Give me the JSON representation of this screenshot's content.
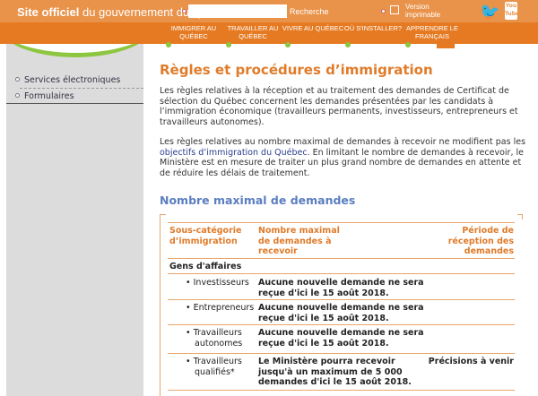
{
  "header": {
    "site_bold": "Site officiel",
    "site_rest": " du gouvernement du Québec",
    "search_placeholder": "",
    "search_label": "Recherche",
    "print_label": "Version imprimable",
    "youtube": "You Tube"
  },
  "nav": [
    "IMMIGRER AU QUÉBEC",
    "TRAVAILLER AU QUÉBEC",
    "VIVRE AU QUÉBEC",
    "OÙ S'INSTALLER?",
    "APPRENDRE LE FRANÇAIS"
  ],
  "sidebar": {
    "items": [
      "Services électroniques",
      "Formulaires"
    ]
  },
  "main": {
    "title": "Règles et procédures d’immigration",
    "p1": "Les règles relatives à la réception et au traitement des demandes de Certificat de sélection du Québec concernent les demandes présentées par les candidats à l’immigration économique (travailleurs permanents, investisseurs, entrepreneurs et travailleurs autonomes).",
    "p2_before": "Les règles relatives au nombre maximal de demandes à recevoir ne modifient pas les ",
    "p2_link": "objectifs d’immigration du Québec",
    "p2_after": ". En limitant le nombre de demandes à recevoir, le Ministère est en mesure de traiter un plus grand nombre de demandes en attente et de réduire les délais de traitement.",
    "section": "Nombre maximal de demandes",
    "table": {
      "headers": [
        "Sous-catégorie d’immigration",
        "Nombre maximal de demandes à recevoir",
        "Période de réception des demandes"
      ],
      "group": "Gens d'affaires",
      "rows": [
        {
          "cat": "Investisseurs",
          "max": "Aucune nouvelle demande ne sera reçue d'ici le 15 août 2018.",
          "period": ""
        },
        {
          "cat": "Entrepreneurs",
          "max": "Aucune nouvelle demande ne sera reçue d'ici le 15 août 2018.",
          "period": ""
        },
        {
          "cat": "Travailleurs autonomes",
          "max": "Aucune nouvelle demande ne sera reçue d'ici le 15 août 2018.",
          "period": ""
        },
        {
          "cat": "Travailleurs qualifiés*",
          "max": "Le Ministère pourra recevoir jusqu'à un maximum de 5 000 demandes d'ici le 15 août 2018.",
          "period": "Précisions à venir"
        }
      ]
    }
  }
}
